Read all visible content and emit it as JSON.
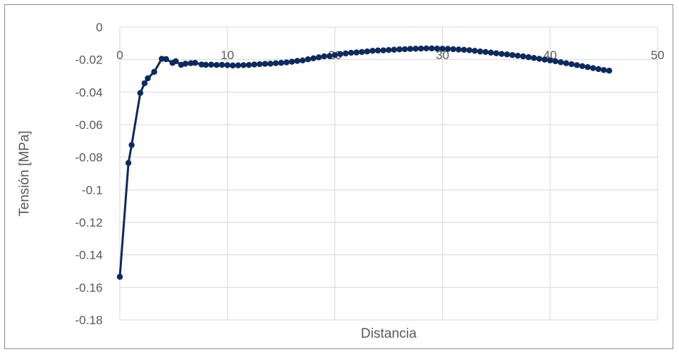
{
  "chart_data": {
    "type": "line",
    "title": "",
    "xlabel": "Distancia",
    "ylabel": "Tensión [MPa]",
    "xlim": [
      0,
      50
    ],
    "ylim": [
      -0.18,
      0
    ],
    "x_ticks": [
      0,
      10,
      20,
      30,
      40,
      50
    ],
    "y_ticks": [
      0,
      -0.02,
      -0.04,
      -0.06,
      -0.08,
      -0.1,
      -0.12,
      -0.14,
      -0.16,
      -0.18
    ],
    "x_tick_labels": [
      "0",
      "10",
      "20",
      "30",
      "40",
      "50"
    ],
    "y_tick_labels": [
      "0",
      "-0.02",
      "-0.04",
      "-0.06",
      "-0.08",
      "-0.1",
      "-0.12",
      "-0.14",
      "-0.16",
      "-0.18"
    ],
    "grid": true,
    "legend": "none",
    "line_color": "#0b2a5e",
    "grid_color": "#d9d9d9",
    "series": [
      {
        "x": [
          0,
          0.8,
          1.1,
          1.9,
          2.3,
          2.6,
          3.2,
          3.9,
          4.3,
          4.9,
          5.2,
          5.7,
          6.1,
          6.6,
          7.0,
          7.6,
          8.0,
          8.5,
          9.0,
          9.5,
          10.0,
          10.5,
          11.0,
          11.5,
          12.0,
          12.5,
          13.0,
          13.5,
          14.0,
          14.5,
          15.0,
          15.5,
          16.0,
          16.5,
          17.0,
          17.5,
          18.0,
          18.5,
          19.0,
          19.5,
          20.0,
          20.5,
          21.0,
          21.5,
          22.0,
          22.5,
          23.0,
          23.5,
          24.0,
          24.5,
          25.0,
          25.5,
          26.0,
          26.5,
          27.0,
          27.5,
          28.0,
          28.5,
          29.0,
          29.5,
          30.0,
          30.5,
          31.0,
          31.5,
          32.0,
          32.5,
          33.0,
          33.5,
          34.0,
          34.5,
          35.0,
          35.5,
          36.0,
          36.5,
          37.0,
          37.5,
          38.0,
          38.5,
          39.0,
          39.5,
          40.0,
          40.5,
          41.0,
          41.5,
          42.0,
          42.5,
          43.0,
          43.5,
          44.0,
          44.5,
          45.0,
          45.5
        ],
        "y": [
          -0.1535,
          -0.0835,
          -0.0725,
          -0.0405,
          -0.0345,
          -0.0315,
          -0.0275,
          -0.0195,
          -0.0197,
          -0.022,
          -0.021,
          -0.0232,
          -0.0225,
          -0.0222,
          -0.022,
          -0.023,
          -0.0232,
          -0.0231,
          -0.0233,
          -0.0232,
          -0.0234,
          -0.0236,
          -0.0235,
          -0.0234,
          -0.0233,
          -0.023,
          -0.0228,
          -0.0226,
          -0.0225,
          -0.0222,
          -0.022,
          -0.0217,
          -0.0213,
          -0.0208,
          -0.0205,
          -0.0198,
          -0.0192,
          -0.0186,
          -0.018,
          -0.0178,
          -0.0172,
          -0.0166,
          -0.0162,
          -0.0158,
          -0.0156,
          -0.0153,
          -0.015,
          -0.0146,
          -0.0144,
          -0.0143,
          -0.0141,
          -0.0139,
          -0.0137,
          -0.0136,
          -0.0134,
          -0.0133,
          -0.0132,
          -0.0131,
          -0.0131,
          -0.0132,
          -0.0133,
          -0.0134,
          -0.0136,
          -0.0138,
          -0.014,
          -0.0142,
          -0.0146,
          -0.015,
          -0.0153,
          -0.0157,
          -0.0161,
          -0.0165,
          -0.0168,
          -0.0172,
          -0.0176,
          -0.018,
          -0.0185,
          -0.019,
          -0.0195,
          -0.02,
          -0.0205,
          -0.021,
          -0.0216,
          -0.0222,
          -0.0228,
          -0.0234,
          -0.024,
          -0.0246,
          -0.0252,
          -0.0258,
          -0.0264,
          -0.0268
        ]
      }
    ]
  }
}
